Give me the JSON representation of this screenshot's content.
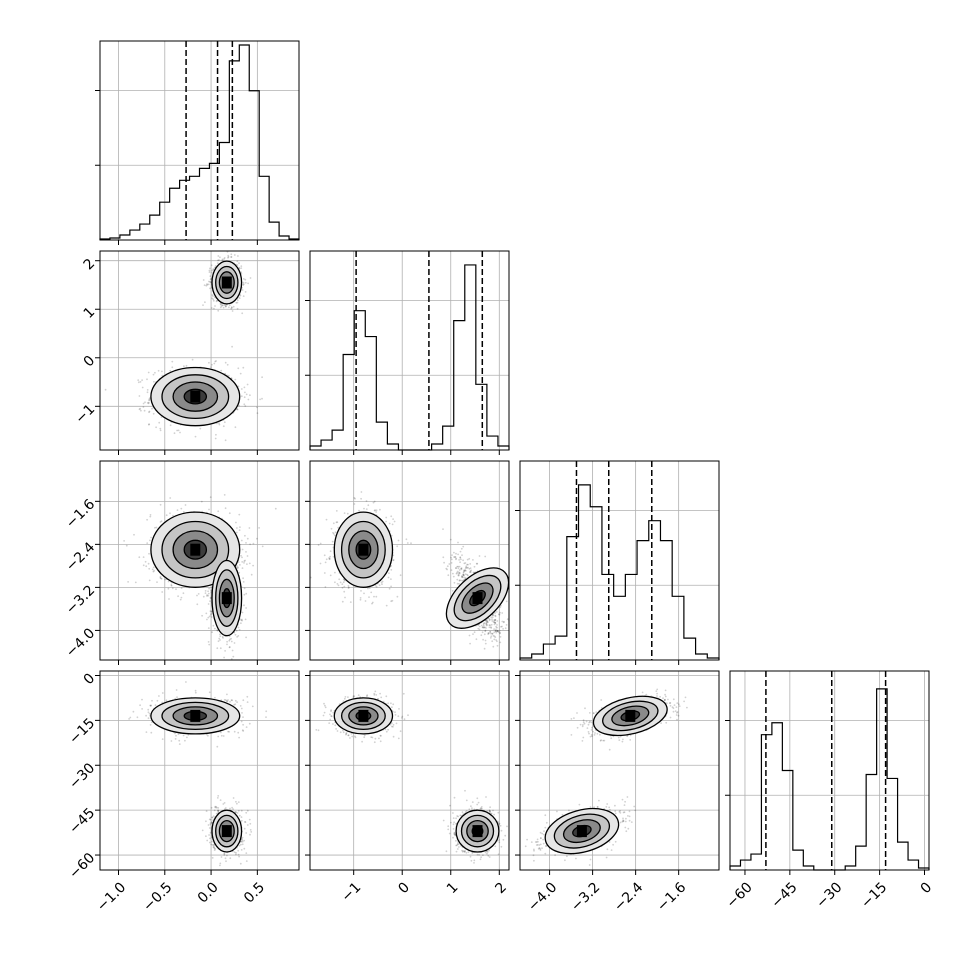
{
  "chart_data": {
    "type": "corner",
    "grid": true,
    "parameters": [
      {
        "range": [
          -1.2,
          0.95
        ],
        "ticks": [
          -1.0,
          -0.5,
          0.0,
          0.5
        ],
        "tick_labels": [
          "−1.0",
          "−0.5",
          "0.0",
          "0.5"
        ],
        "quantiles": [
          -0.27,
          0.07,
          0.23
        ],
        "hist_ymax": 1.0,
        "hist_bins": [
          0.005,
          0.01,
          0.025,
          0.05,
          0.08,
          0.125,
          0.19,
          0.26,
          0.3,
          0.32,
          0.36,
          0.385,
          0.49,
          0.9,
          0.98,
          0.75,
          0.32,
          0.09,
          0.02,
          0.005
        ]
      },
      {
        "range": [
          -1.9,
          2.2
        ],
        "ticks": [
          -1,
          0,
          1,
          2
        ],
        "tick_labels": [
          "−1",
          "0",
          "1",
          "2"
        ],
        "quantiles": [
          -0.95,
          0.55,
          1.65
        ],
        "hist_ymax": 1.0,
        "hist_bins": [
          0.02,
          0.05,
          0.1,
          0.48,
          0.7,
          0.57,
          0.14,
          0.03,
          0.0,
          0.0,
          0.0,
          0.03,
          0.12,
          0.65,
          0.93,
          0.33,
          0.07,
          0.02
        ]
      },
      {
        "range": [
          -4.55,
          -0.85
        ],
        "ticks": [
          -4.0,
          -3.2,
          -2.4,
          -1.6
        ],
        "tick_labels": [
          "−4.0",
          "−3.2",
          "−2.4",
          "−1.6"
        ],
        "quantiles": [
          -3.5,
          -2.9,
          -2.1
        ],
        "hist_ymax": 1.0,
        "hist_bins": [
          0.01,
          0.03,
          0.08,
          0.12,
          0.62,
          0.88,
          0.77,
          0.43,
          0.32,
          0.43,
          0.6,
          0.7,
          0.6,
          0.32,
          0.11,
          0.03,
          0.01
        ]
      },
      {
        "range": [
          -65.0,
          1.5
        ],
        "ticks": [
          -60,
          -45,
          -30,
          -15,
          0
        ],
        "tick_labels": [
          "−60",
          "−45",
          "−30",
          "−15",
          "0"
        ],
        "quantiles": [
          -53.0,
          -31.0,
          -13.0
        ],
        "hist_ymax": 1.0,
        "hist_bins": [
          0.02,
          0.05,
          0.08,
          0.68,
          0.74,
          0.5,
          0.1,
          0.02,
          0.0,
          0.0,
          0.0,
          0.02,
          0.12,
          0.48,
          0.91,
          0.46,
          0.14,
          0.05,
          0.01
        ]
      }
    ],
    "modes": [
      {
        "centers": [
          -0.17,
          -0.8,
          -2.5,
          -13.5
        ],
        "sds": [
          0.24,
          0.3,
          0.35,
          3.0
        ],
        "weight": 0.5
      },
      {
        "centers": [
          0.17,
          1.55,
          -3.4,
          -52.0
        ],
        "sds": [
          0.08,
          0.22,
          0.35,
          3.5
        ],
        "weight": 0.5
      }
    ]
  }
}
